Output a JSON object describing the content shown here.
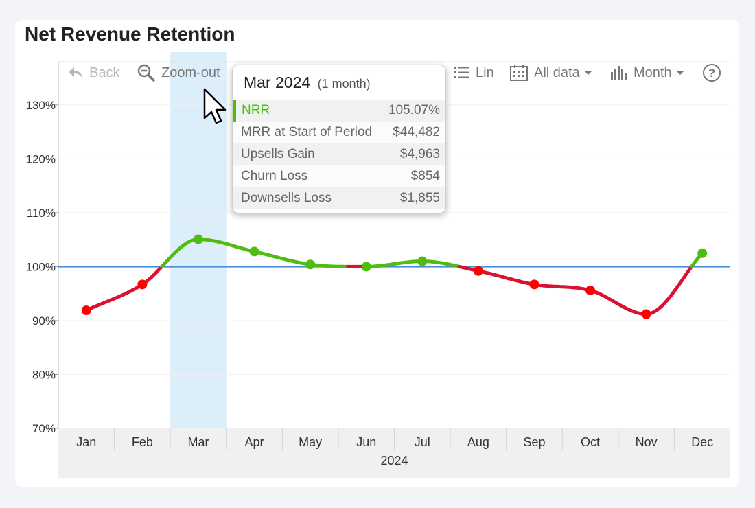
{
  "title": "Net Revenue Retention",
  "toolbar": {
    "back_label": "Back",
    "zoom_out_label": "Zoom-out",
    "scale_label": "Lin",
    "range_label": "All data",
    "period_label": "Month"
  },
  "tooltip": {
    "heading": "Mar 2024",
    "sub": "(1 month)",
    "rows": [
      {
        "label": "NRR",
        "value": "105.07%"
      },
      {
        "label": "MRR at Start of Period",
        "value": "$44,482"
      },
      {
        "label": "Upsells Gain",
        "value": "$4,963"
      },
      {
        "label": "Churn Loss",
        "value": "$854"
      },
      {
        "label": "Downsells Loss",
        "value": "$1,855"
      }
    ]
  },
  "colors": {
    "above": "#4fbd10",
    "below_marker": "#ff0000",
    "below_line": "#d9122f",
    "baseline": "#4a90d9",
    "highlight": "#dbeefa"
  },
  "chart_data": {
    "type": "line",
    "categories": [
      "Jan",
      "Feb",
      "Mar",
      "Apr",
      "May",
      "Jun",
      "Jul",
      "Aug",
      "Sep",
      "Oct",
      "Nov",
      "Dec"
    ],
    "x_group_label": "2024",
    "series": [
      {
        "values": [
          91.9,
          96.7,
          105.07,
          102.8,
          100.4,
          100.0,
          101.0,
          99.2,
          96.7,
          95.6,
          91.2,
          102.5
        ]
      }
    ],
    "reference_line": 100,
    "highlighted_category": "Mar",
    "ylim": [
      70,
      138
    ],
    "yticks": [
      70,
      80,
      90,
      100,
      110,
      120,
      130
    ],
    "ytick_labels": [
      "70%",
      "80%",
      "90%",
      "100%",
      "110%",
      "120%",
      "130%"
    ],
    "grid": true,
    "title": "Net Revenue Retention"
  }
}
